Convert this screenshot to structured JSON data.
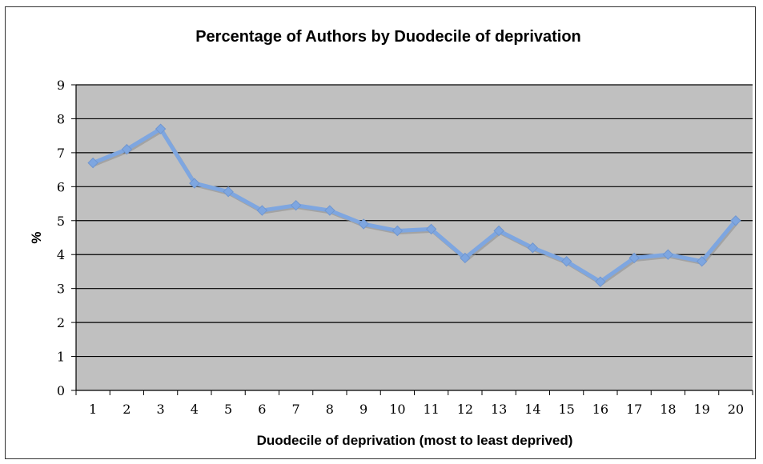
{
  "chart_data": {
    "type": "line",
    "title": "Percentage of Authors by Duodecile of deprivation",
    "xlabel": "Duodecile of deprivation (most to least deprived)",
    "ylabel": "%",
    "categories": [
      "1",
      "2",
      "3",
      "4",
      "5",
      "6",
      "7",
      "8",
      "9",
      "10",
      "11",
      "12",
      "13",
      "14",
      "15",
      "16",
      "17",
      "18",
      "19",
      "20"
    ],
    "series": [
      {
        "values": [
          6.7,
          7.1,
          7.7,
          6.1,
          5.85,
          5.3,
          5.45,
          5.3,
          4.9,
          4.7,
          4.75,
          3.9,
          4.7,
          4.2,
          3.8,
          3.2,
          3.9,
          4.0,
          3.8,
          5.0
        ],
        "color": "#7ea6e0"
      }
    ],
    "ylim": [
      0,
      9
    ],
    "yticks": [
      "0",
      "1",
      "2",
      "3",
      "4",
      "5",
      "6",
      "7",
      "8",
      "9"
    ],
    "grid": true,
    "plot_background": "#c0c0c0",
    "legend": "none"
  }
}
